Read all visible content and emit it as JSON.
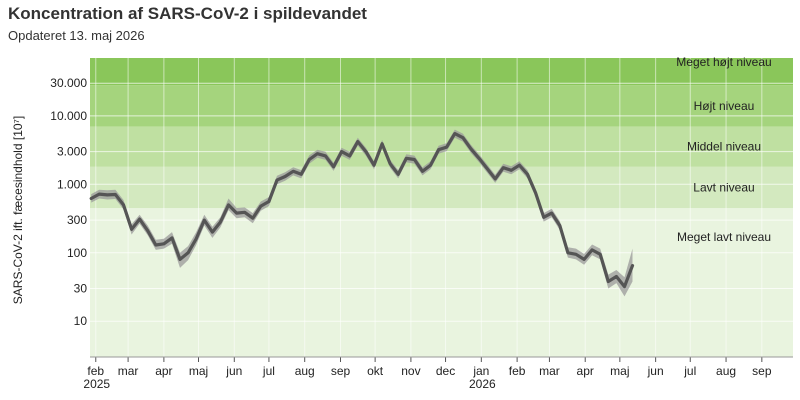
{
  "header": {
    "title": "Koncentration af SARS-CoV-2 i spildevandet",
    "subtitle": "Opdateret 13. maj 2026"
  },
  "chart_data": {
    "type": "line",
    "title": "Koncentration af SARS-CoV-2 i spildevandet",
    "ylabel": "SARS-CoV-2 ift. fæcesindhold [10⁷]",
    "yscale": "log",
    "ylim": [
      3,
      70000
    ],
    "xlim": [
      "2025-01-27",
      "2026-09-28"
    ],
    "yticks": [
      {
        "value": 10,
        "label": "10"
      },
      {
        "value": 30,
        "label": "30"
      },
      {
        "value": 100,
        "label": "100"
      },
      {
        "value": 300,
        "label": "300"
      },
      {
        "value": 1000,
        "label": "1.000"
      },
      {
        "value": 3000,
        "label": "3.000"
      },
      {
        "value": 10000,
        "label": "10.000"
      },
      {
        "value": 30000,
        "label": "30.000"
      }
    ],
    "xticks": [
      {
        "date": "2025-02-01",
        "label": "feb",
        "year": "2025"
      },
      {
        "date": "2025-03-01",
        "label": "mar"
      },
      {
        "date": "2025-04-01",
        "label": "apr"
      },
      {
        "date": "2025-05-01",
        "label": "maj"
      },
      {
        "date": "2025-06-01",
        "label": "jun"
      },
      {
        "date": "2025-07-01",
        "label": "jul"
      },
      {
        "date": "2025-08-01",
        "label": "aug"
      },
      {
        "date": "2025-09-01",
        "label": "sep"
      },
      {
        "date": "2025-10-01",
        "label": "okt"
      },
      {
        "date": "2025-11-01",
        "label": "nov"
      },
      {
        "date": "2025-12-01",
        "label": "dec"
      },
      {
        "date": "2026-01-01",
        "label": "jan",
        "year": "2026"
      },
      {
        "date": "2026-02-01",
        "label": "feb"
      },
      {
        "date": "2026-03-01",
        "label": "mar"
      },
      {
        "date": "2026-04-01",
        "label": "apr"
      },
      {
        "date": "2026-05-01",
        "label": "maj"
      },
      {
        "date": "2026-06-01",
        "label": "jun"
      },
      {
        "date": "2026-07-01",
        "label": "jul"
      },
      {
        "date": "2026-08-01",
        "label": "aug"
      },
      {
        "date": "2026-09-01",
        "label": "sep"
      }
    ],
    "bands": [
      {
        "label": "Meget lavt niveau",
        "from": 3,
        "to": 450,
        "color": "#e9f4df"
      },
      {
        "label": "Lavt niveau",
        "from": 450,
        "to": 1800,
        "color": "#d3e9bf"
      },
      {
        "label": "Middel niveau",
        "from": 1800,
        "to": 7000,
        "color": "#bfe0a1"
      },
      {
        "label": "Højt niveau",
        "from": 7000,
        "to": 28000,
        "color": "#a5d47d"
      },
      {
        "label": "Meget højt niveau",
        "from": 28000,
        "to": 70000,
        "color": "#8ac65a"
      }
    ],
    "series": [
      {
        "line_color": "#555555",
        "band_color": "#9a9a9a",
        "points": [
          {
            "x": "2025-01-28",
            "y": 620,
            "lo": 540,
            "hi": 720
          },
          {
            "x": "2025-02-04",
            "y": 720,
            "lo": 620,
            "hi": 830
          },
          {
            "x": "2025-02-11",
            "y": 700,
            "lo": 600,
            "hi": 820
          },
          {
            "x": "2025-02-18",
            "y": 710,
            "lo": 610,
            "hi": 830
          },
          {
            "x": "2025-02-25",
            "y": 500,
            "lo": 430,
            "hi": 590
          },
          {
            "x": "2025-03-04",
            "y": 220,
            "lo": 185,
            "hi": 260
          },
          {
            "x": "2025-03-11",
            "y": 310,
            "lo": 265,
            "hi": 360
          },
          {
            "x": "2025-03-18",
            "y": 210,
            "lo": 180,
            "hi": 250
          },
          {
            "x": "2025-03-25",
            "y": 130,
            "lo": 110,
            "hi": 155
          },
          {
            "x": "2025-04-01",
            "y": 135,
            "lo": 115,
            "hi": 160
          },
          {
            "x": "2025-04-08",
            "y": 165,
            "lo": 135,
            "hi": 200
          },
          {
            "x": "2025-04-15",
            "y": 80,
            "lo": 60,
            "hi": 100
          },
          {
            "x": "2025-04-22",
            "y": 100,
            "lo": 78,
            "hi": 125
          },
          {
            "x": "2025-04-29",
            "y": 160,
            "lo": 130,
            "hi": 200
          },
          {
            "x": "2025-05-06",
            "y": 300,
            "lo": 250,
            "hi": 360
          },
          {
            "x": "2025-05-13",
            "y": 200,
            "lo": 165,
            "hi": 240
          },
          {
            "x": "2025-05-20",
            "y": 280,
            "lo": 235,
            "hi": 330
          },
          {
            "x": "2025-05-27",
            "y": 500,
            "lo": 420,
            "hi": 620
          },
          {
            "x": "2025-06-03",
            "y": 380,
            "lo": 320,
            "hi": 450
          },
          {
            "x": "2025-06-10",
            "y": 390,
            "lo": 330,
            "hi": 460
          },
          {
            "x": "2025-06-17",
            "y": 320,
            "lo": 270,
            "hi": 380
          },
          {
            "x": "2025-06-24",
            "y": 480,
            "lo": 410,
            "hi": 560
          },
          {
            "x": "2025-07-01",
            "y": 560,
            "lo": 480,
            "hi": 650
          },
          {
            "x": "2025-07-08",
            "y": 1150,
            "lo": 1000,
            "hi": 1330
          },
          {
            "x": "2025-07-15",
            "y": 1300,
            "lo": 1130,
            "hi": 1500
          },
          {
            "x": "2025-07-22",
            "y": 1550,
            "lo": 1350,
            "hi": 1780
          },
          {
            "x": "2025-07-29",
            "y": 1400,
            "lo": 1220,
            "hi": 1610
          },
          {
            "x": "2025-08-05",
            "y": 2300,
            "lo": 2000,
            "hi": 2650
          },
          {
            "x": "2025-08-12",
            "y": 2800,
            "lo": 2450,
            "hi": 3200
          },
          {
            "x": "2025-08-19",
            "y": 2600,
            "lo": 2270,
            "hi": 2980
          },
          {
            "x": "2025-08-26",
            "y": 1800,
            "lo": 1570,
            "hi": 2060
          },
          {
            "x": "2025-09-02",
            "y": 3000,
            "lo": 2620,
            "hi": 3430
          },
          {
            "x": "2025-09-09",
            "y": 2600,
            "lo": 2270,
            "hi": 2980
          },
          {
            "x": "2025-09-16",
            "y": 4200,
            "lo": 3670,
            "hi": 4800
          },
          {
            "x": "2025-09-23",
            "y": 3000,
            "lo": 2620,
            "hi": 3430
          },
          {
            "x": "2025-09-30",
            "y": 1900,
            "lo": 1660,
            "hi": 2170
          },
          {
            "x": "2025-10-07",
            "y": 3900,
            "lo": 3400,
            "hi": 4460
          },
          {
            "x": "2025-10-14",
            "y": 2000,
            "lo": 1750,
            "hi": 2290
          },
          {
            "x": "2025-10-21",
            "y": 1400,
            "lo": 1220,
            "hi": 1610
          },
          {
            "x": "2025-10-28",
            "y": 2400,
            "lo": 2100,
            "hi": 2750
          },
          {
            "x": "2025-11-04",
            "y": 2300,
            "lo": 2000,
            "hi": 2630
          },
          {
            "x": "2025-11-11",
            "y": 1550,
            "lo": 1350,
            "hi": 1780
          },
          {
            "x": "2025-11-18",
            "y": 1900,
            "lo": 1660,
            "hi": 2170
          },
          {
            "x": "2025-11-25",
            "y": 3200,
            "lo": 2800,
            "hi": 3660
          },
          {
            "x": "2025-12-02",
            "y": 3500,
            "lo": 3060,
            "hi": 4000
          },
          {
            "x": "2025-12-09",
            "y": 5500,
            "lo": 4800,
            "hi": 6300
          },
          {
            "x": "2025-12-16",
            "y": 4800,
            "lo": 4200,
            "hi": 5500
          },
          {
            "x": "2025-12-23",
            "y": 3300,
            "lo": 2880,
            "hi": 3780
          },
          {
            "x": "2025-12-30",
            "y": 2400,
            "lo": 2100,
            "hi": 2750
          },
          {
            "x": "2026-01-06",
            "y": 1700,
            "lo": 1480,
            "hi": 1950
          },
          {
            "x": "2026-01-13",
            "y": 1200,
            "lo": 1050,
            "hi": 1380
          },
          {
            "x": "2026-01-20",
            "y": 1750,
            "lo": 1530,
            "hi": 2000
          },
          {
            "x": "2026-01-27",
            "y": 1600,
            "lo": 1400,
            "hi": 1830
          },
          {
            "x": "2026-02-03",
            "y": 1900,
            "lo": 1660,
            "hi": 2170
          },
          {
            "x": "2026-02-10",
            "y": 1400,
            "lo": 1220,
            "hi": 1610
          },
          {
            "x": "2026-02-17",
            "y": 750,
            "lo": 650,
            "hi": 860
          },
          {
            "x": "2026-02-24",
            "y": 330,
            "lo": 285,
            "hi": 380
          },
          {
            "x": "2026-03-03",
            "y": 380,
            "lo": 330,
            "hi": 440
          },
          {
            "x": "2026-03-10",
            "y": 250,
            "lo": 215,
            "hi": 290
          },
          {
            "x": "2026-03-17",
            "y": 100,
            "lo": 85,
            "hi": 120
          },
          {
            "x": "2026-03-24",
            "y": 95,
            "lo": 80,
            "hi": 115
          },
          {
            "x": "2026-03-31",
            "y": 80,
            "lo": 67,
            "hi": 96
          },
          {
            "x": "2026-04-07",
            "y": 110,
            "lo": 92,
            "hi": 132
          },
          {
            "x": "2026-04-14",
            "y": 95,
            "lo": 80,
            "hi": 115
          },
          {
            "x": "2026-04-21",
            "y": 38,
            "lo": 30,
            "hi": 48
          },
          {
            "x": "2026-04-28",
            "y": 45,
            "lo": 36,
            "hi": 56
          },
          {
            "x": "2026-05-05",
            "y": 32,
            "lo": 23,
            "hi": 44
          },
          {
            "x": "2026-05-12",
            "y": 65,
            "lo": 38,
            "hi": 115
          }
        ]
      }
    ]
  }
}
